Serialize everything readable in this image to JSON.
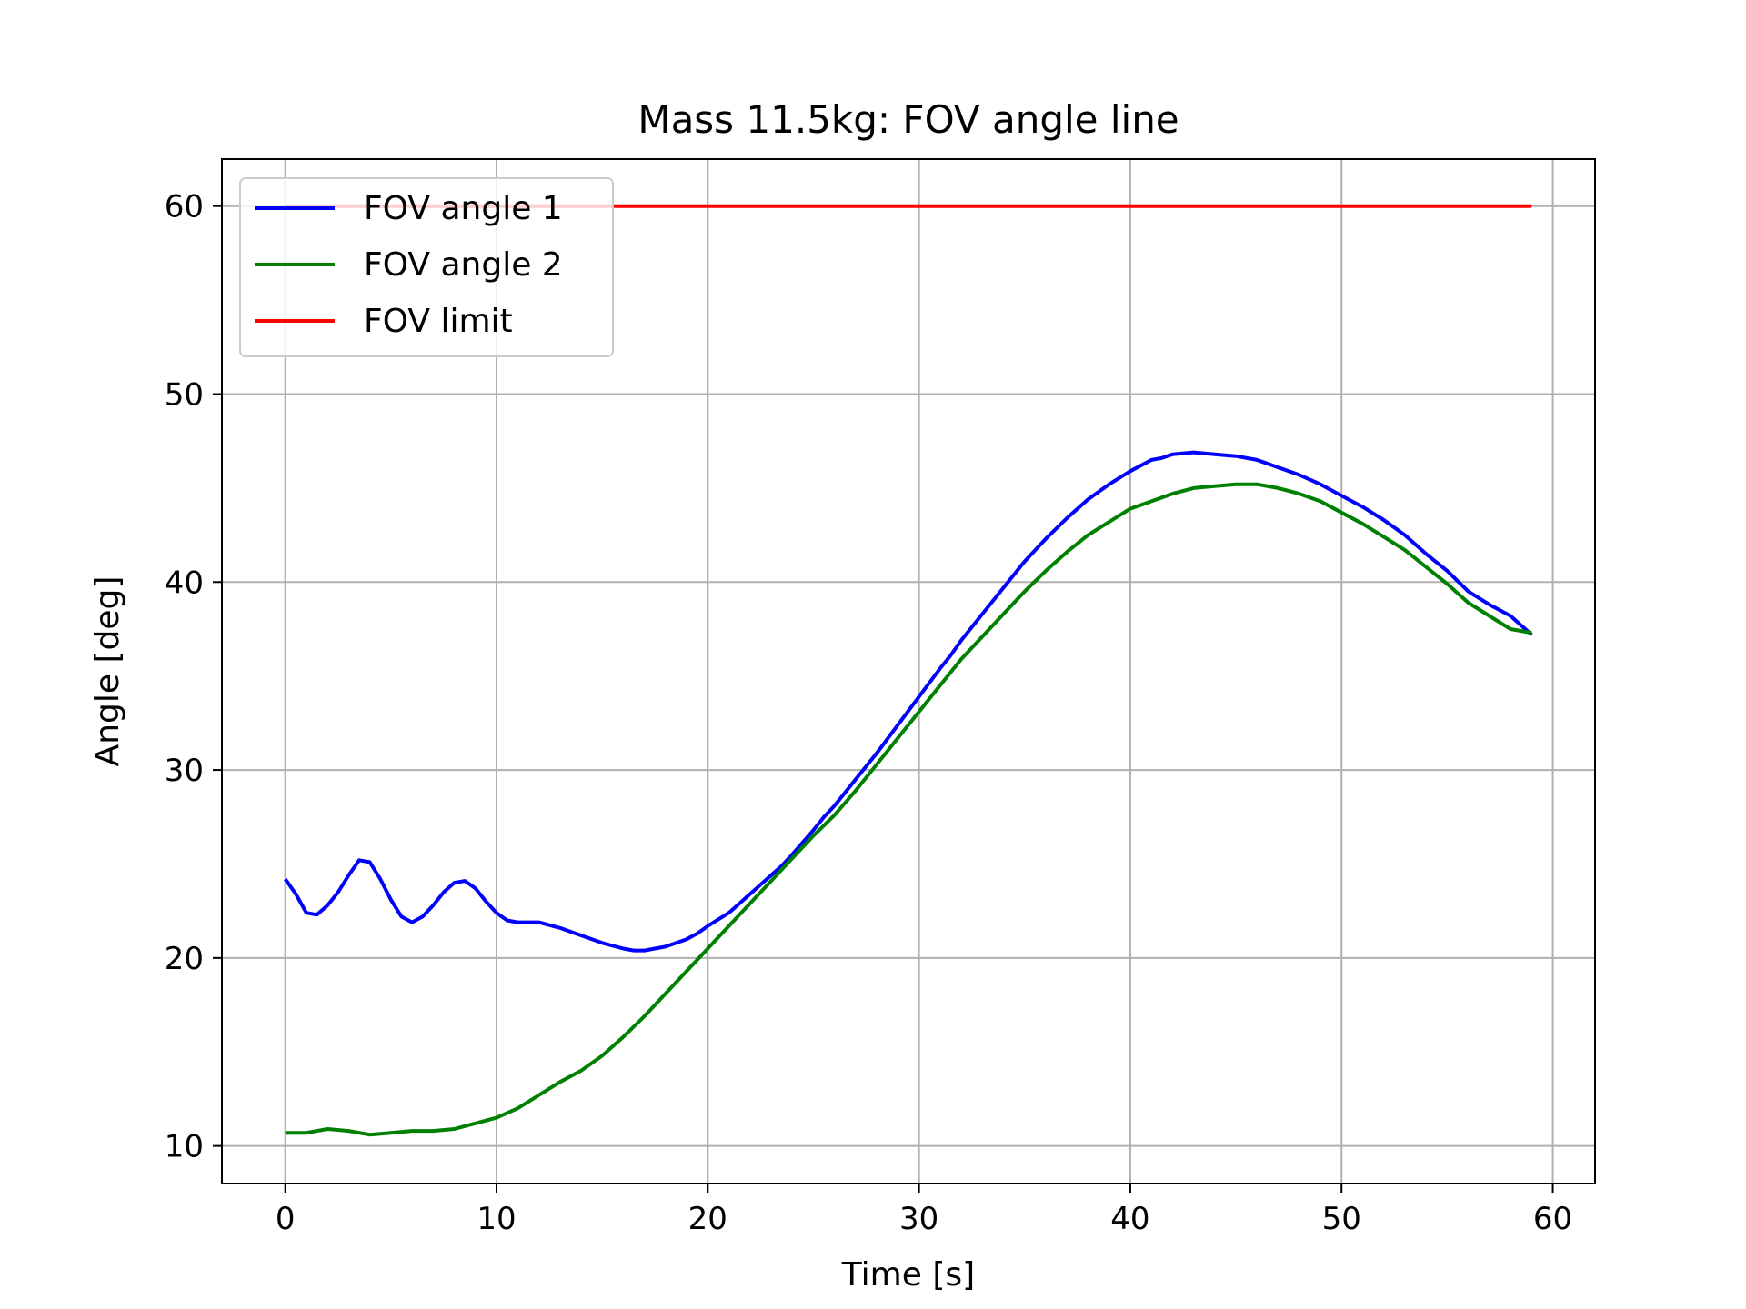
{
  "chart_data": {
    "type": "line",
    "title": "Mass 11.5kg: FOV angle line",
    "xlabel": "Time [s]",
    "ylabel": "Angle [deg]",
    "xlim": [
      -3,
      62
    ],
    "ylim": [
      8,
      62.5
    ],
    "xticks": [
      0,
      10,
      20,
      30,
      40,
      50,
      60
    ],
    "yticks": [
      10,
      20,
      30,
      40,
      50,
      60
    ],
    "grid": true,
    "legend_position": "upper-left",
    "series": [
      {
        "name": "FOV angle 1",
        "color": "#0000ff",
        "x": [
          0,
          0.5,
          1,
          1.5,
          2,
          2.5,
          3,
          3.5,
          4,
          4.5,
          5,
          5.5,
          6,
          6.5,
          7,
          7.5,
          8,
          8.5,
          9,
          9.5,
          10,
          10.5,
          11,
          11.5,
          12,
          13,
          14,
          15,
          16,
          16.5,
          17,
          18,
          19,
          19.5,
          20,
          21,
          22,
          23,
          23.5,
          24,
          25,
          25.5,
          26,
          27,
          28,
          29,
          30,
          31,
          31.5,
          32,
          32.5,
          33,
          34,
          35,
          35.5,
          36,
          37,
          38,
          38.5,
          39,
          40,
          41,
          41.5,
          42,
          43,
          44,
          45,
          46,
          47,
          48,
          49,
          50,
          51,
          52,
          53,
          54,
          55,
          56,
          57,
          58,
          59
        ],
        "y": [
          24.2,
          23.4,
          22.4,
          22.3,
          22.8,
          23.5,
          24.4,
          25.2,
          25.1,
          24.2,
          23.1,
          22.2,
          21.9,
          22.2,
          22.8,
          23.5,
          24.0,
          24.1,
          23.7,
          23.0,
          22.4,
          22.0,
          21.9,
          21.9,
          21.9,
          21.6,
          21.2,
          20.8,
          20.5,
          20.4,
          20.4,
          20.6,
          21.0,
          21.3,
          21.7,
          22.4,
          23.4,
          24.4,
          24.9,
          25.5,
          26.8,
          27.5,
          28.1,
          29.5,
          30.9,
          32.4,
          33.9,
          35.4,
          36.1,
          36.9,
          37.6,
          38.3,
          39.7,
          41.1,
          41.7,
          42.3,
          43.4,
          44.4,
          44.8,
          45.2,
          45.9,
          46.5,
          46.6,
          46.8,
          46.9,
          46.8,
          46.7,
          46.5,
          46.1,
          45.7,
          45.2,
          44.6,
          44.0,
          43.3,
          42.5,
          41.5,
          40.6,
          39.5,
          38.8,
          38.2,
          37.2
        ]
      },
      {
        "name": "FOV angle 2",
        "color": "#008000",
        "x": [
          0,
          1,
          2,
          3,
          4,
          5,
          6,
          7,
          8,
          9,
          10,
          11,
          12,
          13,
          14,
          15,
          16,
          17,
          18,
          19,
          20,
          21,
          22,
          23,
          24,
          25,
          26,
          27,
          28,
          29,
          30,
          31,
          32,
          33,
          34,
          35,
          36,
          37,
          38,
          39,
          40,
          41,
          42,
          43,
          44,
          45,
          46,
          47,
          48,
          49,
          50,
          51,
          52,
          53,
          54,
          55,
          56,
          57,
          58,
          59
        ],
        "y": [
          10.7,
          10.7,
          10.9,
          10.8,
          10.6,
          10.7,
          10.8,
          10.8,
          10.9,
          11.2,
          11.5,
          12.0,
          12.7,
          13.4,
          14.0,
          14.8,
          15.8,
          16.9,
          18.1,
          19.3,
          20.5,
          21.7,
          22.9,
          24.1,
          25.3,
          26.5,
          27.6,
          28.9,
          30.3,
          31.7,
          33.1,
          34.5,
          35.9,
          37.1,
          38.3,
          39.5,
          40.6,
          41.6,
          42.5,
          43.2,
          43.9,
          44.3,
          44.7,
          45.0,
          45.1,
          45.2,
          45.2,
          45.0,
          44.7,
          44.3,
          43.7,
          43.1,
          42.4,
          41.7,
          40.8,
          39.9,
          38.9,
          38.2,
          37.5,
          37.3
        ]
      },
      {
        "name": "FOV limit",
        "color": "#ff0000",
        "x": [
          0,
          59
        ],
        "y": [
          60,
          60
        ]
      }
    ]
  }
}
